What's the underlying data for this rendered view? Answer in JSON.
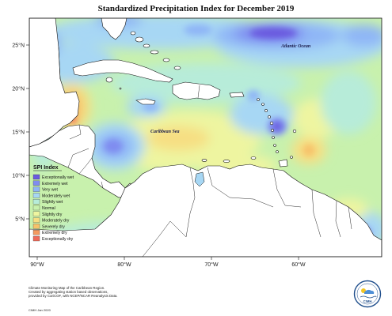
{
  "title": "Standardized Precipitation Index for December 2019",
  "map": {
    "latitude_labels": [
      "25°N",
      "20°N",
      "15°N",
      "10°N",
      "5°N"
    ],
    "longitude_labels": [
      "90°W",
      "80°W",
      "70°W",
      "60°W"
    ],
    "places": {
      "ocean": "Atlantic Ocean",
      "sea": "Caribbean Sea"
    },
    "colors": {
      "land": "#ffffff",
      "coastline": "#111111",
      "frame": "#111111"
    }
  },
  "legend": {
    "title": "SPI Index",
    "items": [
      {
        "label": "Exceptionally wet",
        "color": "#6a5adf"
      },
      {
        "label": "Extremely wet",
        "color": "#7f8cf0"
      },
      {
        "label": "Very wet",
        "color": "#8fb6f6"
      },
      {
        "label": "Moderately wet",
        "color": "#a7d7f4"
      },
      {
        "label": "Slightly wet",
        "color": "#b7ecd9"
      },
      {
        "label": "Normal",
        "color": "#c8f1ad"
      },
      {
        "label": "Slightly dry",
        "color": "#eef5a0"
      },
      {
        "label": "Moderately dry",
        "color": "#f6df83"
      },
      {
        "label": "Severely dry",
        "color": "#f6c26a"
      },
      {
        "label": "Extremely dry",
        "color": "#f49a60"
      },
      {
        "label": "Exceptionally dry",
        "color": "#ef6a5a"
      }
    ]
  },
  "footer": {
    "lines": [
      "Climate Monitoring Map of the Caribbean Region.",
      "Created by aggregating station based observations,",
      "provided by CariCOF, with NCEP/NCAR Reanalysis Data."
    ],
    "credit": "CIMH Jan 2020",
    "logo_text": "CIMH",
    "logo_icon": "cimh-logo-icon"
  }
}
